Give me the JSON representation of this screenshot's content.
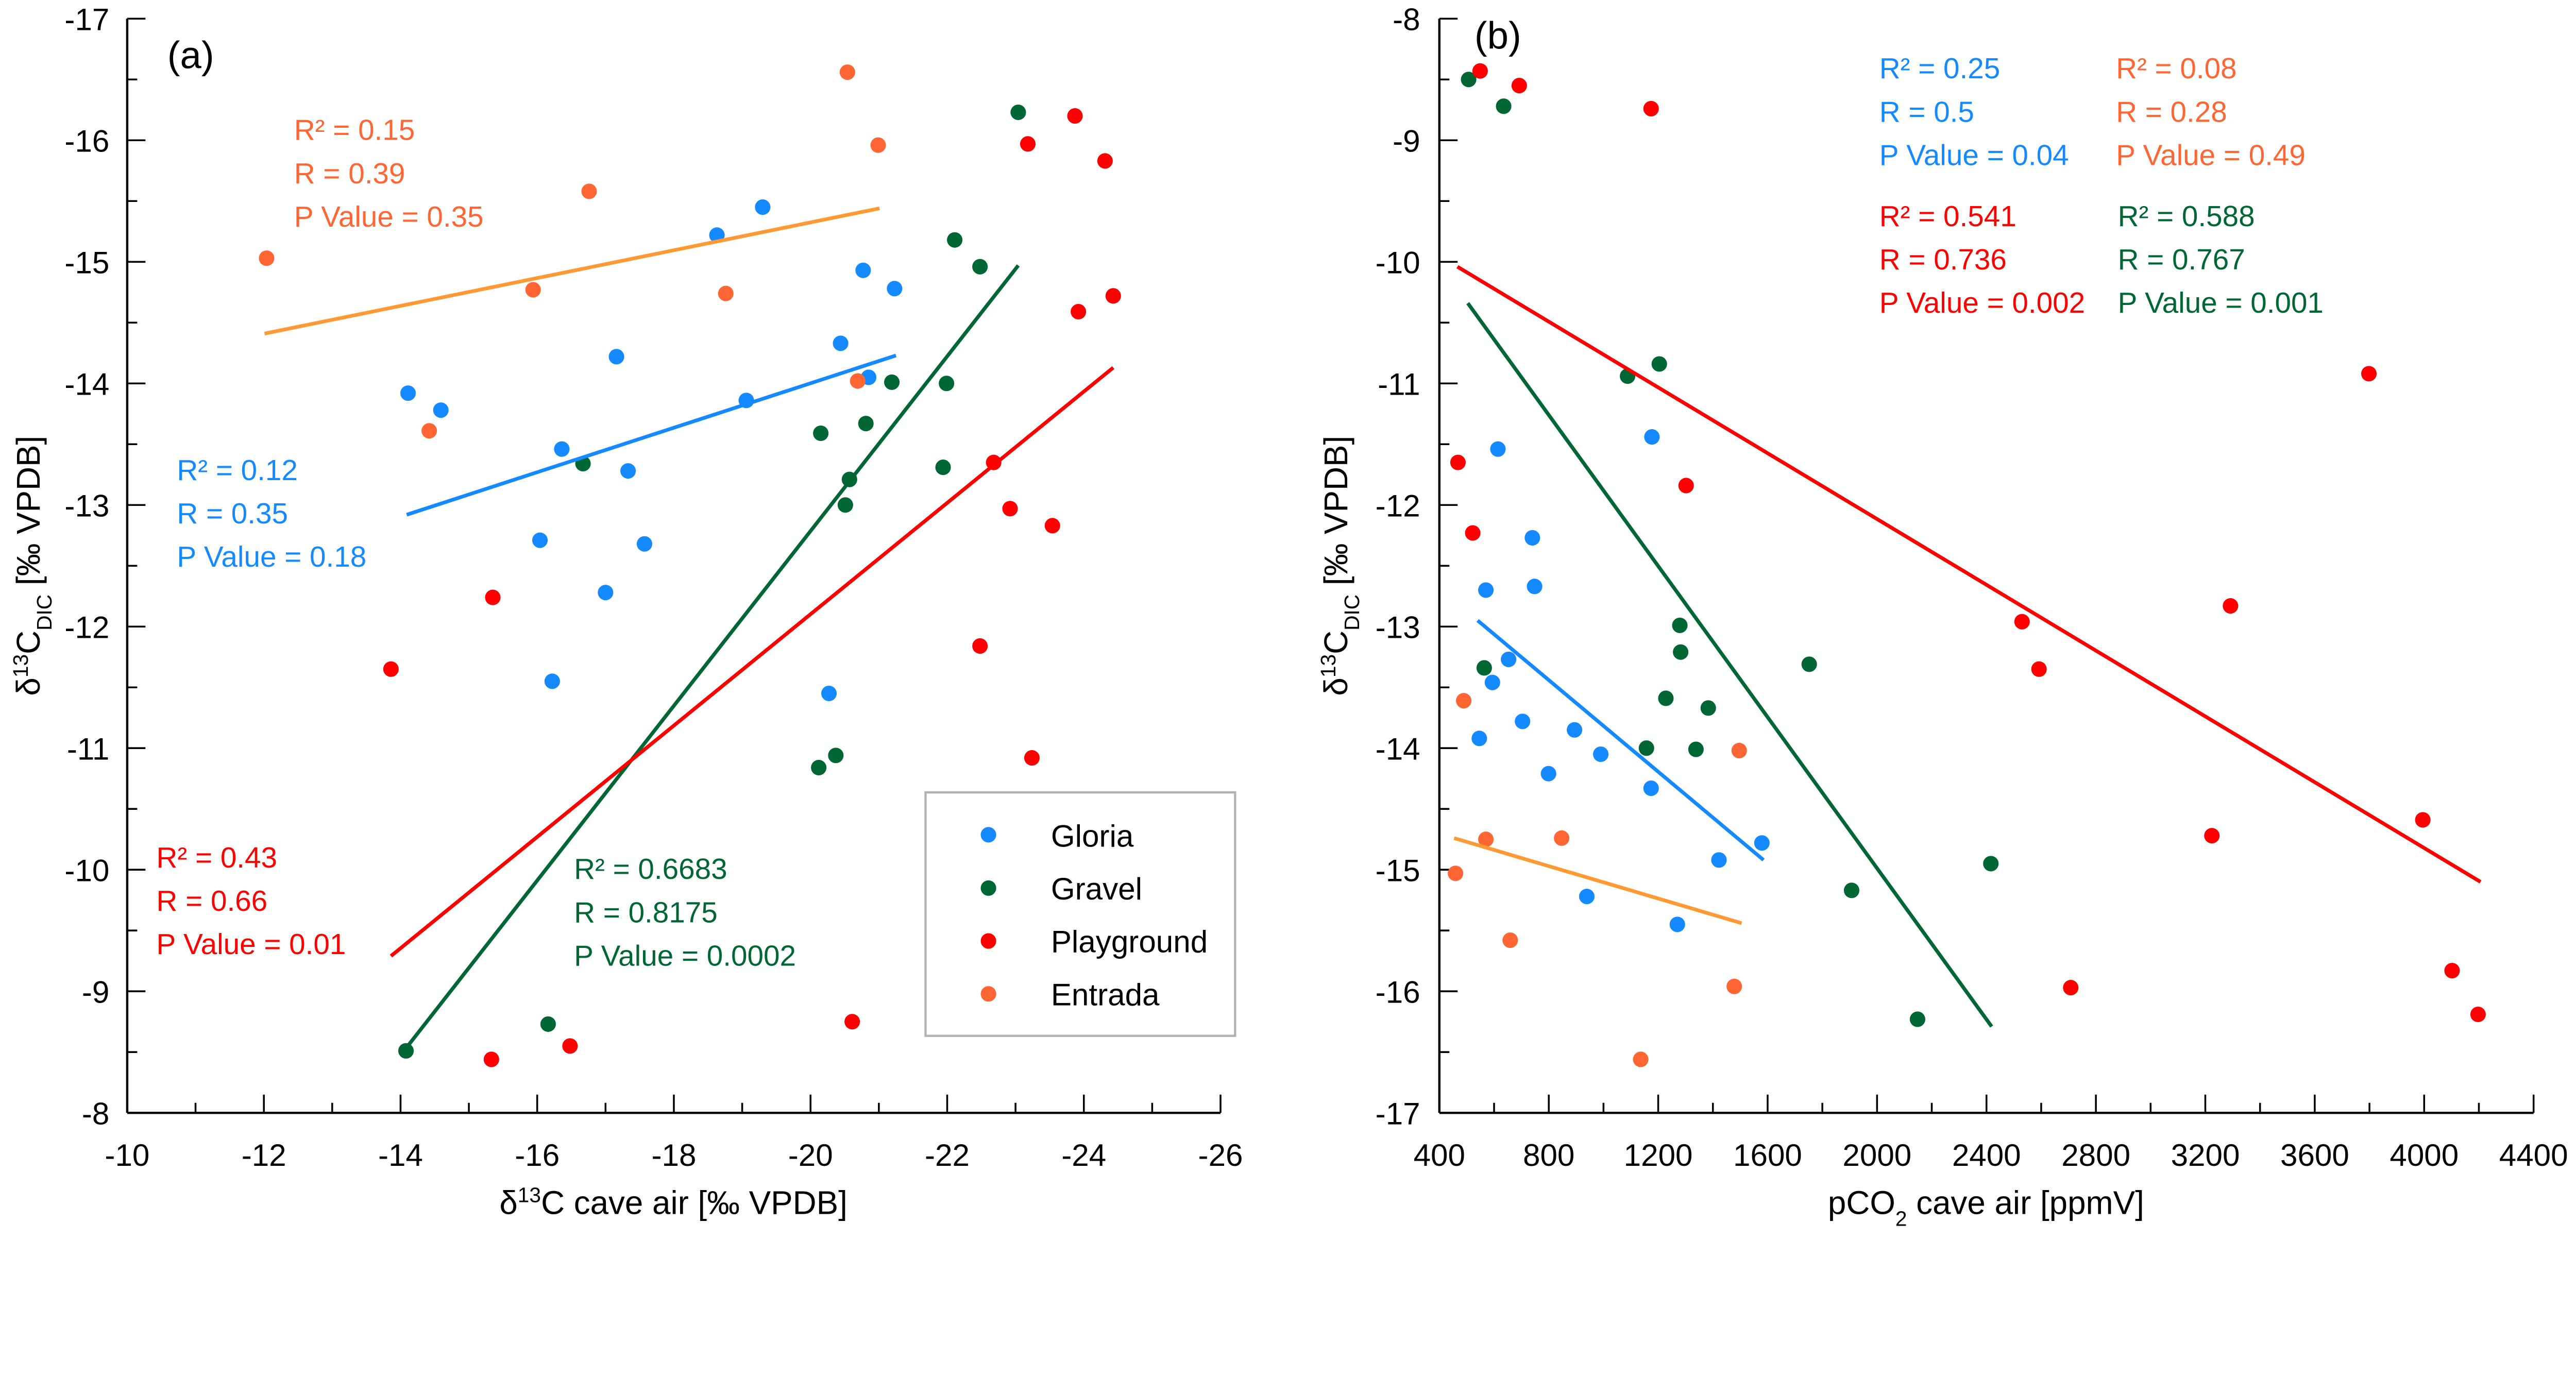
{
  "chart_data": [
    {
      "type": "scatter",
      "panel_label": "(a)",
      "xlabel": {
        "pre": "δ",
        "sup": "13",
        "main": "C cave air [‰ VPDB]",
        "sub": "",
        "post": ""
      },
      "ylabel": {
        "pre": "δ",
        "sup": "13",
        "main": "C",
        "sub": "DIC",
        "post": " [‰ VPDB]"
      },
      "xlim": [
        -10,
        -26
      ],
      "ylim": [
        -8,
        -17
      ],
      "xticks": [
        -10,
        -12,
        -14,
        -16,
        -18,
        -20,
        -22,
        -24,
        -26
      ],
      "xtick_labels": [
        "-10",
        "-12",
        "-14",
        "-16",
        "-18",
        "-20",
        "-22",
        "-24",
        "-26"
      ],
      "yticks": [
        -8,
        -9,
        -10,
        -11,
        -12,
        -13,
        -14,
        -15,
        -16,
        -17
      ],
      "ytick_labels": [
        "-8",
        "-9",
        "-10",
        "-11",
        "-12",
        "-13",
        "-14",
        "-15",
        "-16",
        "-17"
      ],
      "grid": false,
      "legend": {
        "position": "bottom-right",
        "entries": [
          "Gloria",
          "Gravel",
          "Playground",
          "Entrada"
        ]
      },
      "series": [
        {
          "name": "Gloria",
          "color": "#1589FF",
          "points": [
            [
              -14.11,
              -13.92
            ],
            [
              -14.59,
              -13.78
            ],
            [
              -16.36,
              -13.46
            ],
            [
              -17.16,
              -14.22
            ],
            [
              -17.33,
              -13.28
            ],
            [
              -16.04,
              -12.71
            ],
            [
              -17.57,
              -12.68
            ],
            [
              -17.0,
              -12.28
            ],
            [
              -16.22,
              -11.55
            ],
            [
              -18.63,
              -15.22
            ],
            [
              -19.3,
              -15.45
            ],
            [
              -19.06,
              -13.86
            ],
            [
              -20.44,
              -14.33
            ],
            [
              -20.77,
              -14.93
            ],
            [
              -21.23,
              -14.78
            ],
            [
              -20.85,
              -14.05
            ],
            [
              -20.27,
              -11.45
            ]
          ]
        },
        {
          "name": "Gravel",
          "color": "#006633",
          "points": [
            [
              -14.08,
              -8.51
            ],
            [
              -16.67,
              -13.34
            ],
            [
              -16.16,
              -8.73
            ],
            [
              -20.15,
              -13.59
            ],
            [
              -20.57,
              -13.21
            ],
            [
              -20.51,
              -13.0
            ],
            [
              -20.81,
              -13.67
            ],
            [
              -21.19,
              -14.01
            ],
            [
              -20.12,
              -10.84
            ],
            [
              -20.37,
              -10.94
            ],
            [
              -21.99,
              -14.0
            ],
            [
              -21.94,
              -13.31
            ],
            [
              -22.11,
              -15.18
            ],
            [
              -22.48,
              -14.96
            ],
            [
              -23.04,
              -16.23
            ]
          ]
        },
        {
          "name": "Playground",
          "color": "#FF0000",
          "points": [
            [
              -13.86,
              -11.65
            ],
            [
              -15.35,
              -12.24
            ],
            [
              -15.33,
              -8.44
            ],
            [
              -16.48,
              -8.55
            ],
            [
              -20.61,
              -8.75
            ],
            [
              -22.48,
              -11.84
            ],
            [
              -23.24,
              -10.92
            ],
            [
              -22.68,
              -13.35
            ],
            [
              -22.92,
              -12.97
            ],
            [
              -23.54,
              -12.83
            ],
            [
              -23.18,
              -15.97
            ],
            [
              -23.87,
              -16.2
            ],
            [
              -24.31,
              -15.83
            ],
            [
              -23.92,
              -14.59
            ],
            [
              -24.43,
              -14.72
            ]
          ]
        },
        {
          "name": "Entrada",
          "color": "#FF6633",
          "points": [
            [
              -12.04,
              -15.03
            ],
            [
              -14.42,
              -13.61
            ],
            [
              -15.94,
              -14.77
            ],
            [
              -16.76,
              -15.58
            ],
            [
              -18.76,
              -14.74
            ],
            [
              -20.54,
              -16.56
            ],
            [
              -20.99,
              -15.96
            ],
            [
              -20.69,
              -14.02
            ]
          ]
        }
      ],
      "trendlines": [
        {
          "series": "Entrada",
          "color": "#FF9933",
          "from": [
            -12.01,
            -14.41
          ],
          "to": [
            -21.01,
            -15.44
          ]
        },
        {
          "series": "Gloria",
          "color": "#1589FF",
          "from": [
            -14.09,
            -12.92
          ],
          "to": [
            -21.25,
            -14.23
          ]
        },
        {
          "series": "Gravel",
          "color": "#006633",
          "from": [
            -14.05,
            -8.51
          ],
          "to": [
            -23.04,
            -14.97
          ]
        },
        {
          "series": "Playground",
          "color": "#FF0000",
          "from": [
            -13.86,
            -9.29
          ],
          "to": [
            -24.43,
            -14.13
          ]
        }
      ],
      "annotations": [
        {
          "series": "Entrada",
          "color": "#FF6633",
          "lines": [
            "R² = 0.15",
            "R = 0.39",
            "P  Value = 0.35"
          ]
        },
        {
          "series": "Gloria",
          "color": "#1589FF",
          "lines": [
            "R² = 0.12",
            "R = 0.35",
            "P  Value = 0.18"
          ]
        },
        {
          "series": "Playground",
          "color": "#FF0000",
          "lines": [
            "R² = 0.43",
            "R = 0.66",
            "P  Value = 0.01"
          ]
        },
        {
          "series": "Gravel",
          "color": "#006633",
          "lines": [
            "R² = 0.6683",
            "R = 0.8175",
            "P  Value = 0.0002"
          ]
        }
      ]
    },
    {
      "type": "scatter",
      "panel_label": "(b)",
      "xlabel": {
        "pre": "pCO",
        "sup": "",
        "main": "",
        "sub": "2",
        "post": " cave air [ppmV]"
      },
      "ylabel": {
        "pre": "δ",
        "sup": "13",
        "main": "C",
        "sub": "DIC",
        "post": " [‰ VPDB]"
      },
      "xlim": [
        400,
        4400
      ],
      "ylim": [
        -17,
        -8
      ],
      "xticks": [
        400,
        800,
        1200,
        1600,
        2000,
        2400,
        2800,
        3200,
        3600,
        4000,
        4400
      ],
      "xtick_labels": [
        "400",
        "800",
        "1200",
        "1600",
        "2000",
        "2400",
        "2800",
        "3200",
        "3600",
        "4000",
        "4400"
      ],
      "yticks": [
        -17,
        -16,
        -15,
        -14,
        -13,
        -12,
        -11,
        -10,
        -9,
        -8
      ],
      "ytick_labels": [
        "-17",
        "-16",
        "-15",
        "-14",
        "-13",
        "-12",
        "-11",
        "-10",
        "-9",
        "-8"
      ],
      "grid": false,
      "series": [
        {
          "name": "Gloria",
          "color": "#1589FF",
          "points": [
            [
              614,
              -11.54
            ],
            [
              1177,
              -11.44
            ],
            [
              740,
              -12.27
            ],
            [
              748,
              -12.67
            ],
            [
              570,
              -12.7
            ],
            [
              653,
              -13.27
            ],
            [
              594,
              -13.46
            ],
            [
              704,
              -13.78
            ],
            [
              546,
              -13.92
            ],
            [
              894,
              -13.85
            ],
            [
              990,
              -14.05
            ],
            [
              799,
              -14.21
            ],
            [
              1174,
              -14.33
            ],
            [
              1422,
              -14.92
            ],
            [
              1579,
              -14.78
            ],
            [
              939,
              -15.22
            ],
            [
              1270,
              -15.45
            ]
          ]
        },
        {
          "name": "Gravel",
          "color": "#006633",
          "points": [
            [
              507,
              -8.5
            ],
            [
              635,
              -8.72
            ],
            [
              1088,
              -10.94
            ],
            [
              1204,
              -10.84
            ],
            [
              564,
              -13.34
            ],
            [
              1279,
              -12.99
            ],
            [
              1282,
              -13.21
            ],
            [
              1228,
              -13.59
            ],
            [
              1383,
              -13.67
            ],
            [
              1157,
              -14.0
            ],
            [
              1338,
              -14.01
            ],
            [
              1752,
              -13.31
            ],
            [
              1907,
              -15.17
            ],
            [
              2416,
              -14.95
            ],
            [
              2148,
              -16.23
            ]
          ]
        },
        {
          "name": "Playground",
          "color": "#FF0000",
          "points": [
            [
              549,
              -8.43
            ],
            [
              692,
              -8.55
            ],
            [
              1174,
              -8.74
            ],
            [
              468,
              -11.65
            ],
            [
              522,
              -12.23
            ],
            [
              1302,
              -11.84
            ],
            [
              2530,
              -12.96
            ],
            [
              2592,
              -13.35
            ],
            [
              2708,
              -15.97
            ],
            [
              3292,
              -12.83
            ],
            [
              3224,
              -14.72
            ],
            [
              3798,
              -10.92
            ],
            [
              3995,
              -14.59
            ],
            [
              4102,
              -15.83
            ],
            [
              4197,
              -16.19
            ]
          ]
        },
        {
          "name": "Entrada",
          "color": "#FF6633",
          "points": [
            [
              489,
              -13.61
            ],
            [
              459,
              -15.03
            ],
            [
              570,
              -14.75
            ],
            [
              659,
              -15.58
            ],
            [
              847,
              -14.74
            ],
            [
              1496,
              -14.02
            ],
            [
              1478,
              -15.96
            ],
            [
              1136,
              -16.56
            ]
          ]
        }
      ],
      "trendlines": [
        {
          "series": "Playground",
          "color": "#FF0000",
          "from": [
            466,
            -10.04
          ],
          "to": [
            4206,
            -15.1
          ]
        },
        {
          "series": "Gravel",
          "color": "#006633",
          "from": [
            504,
            -10.34
          ],
          "to": [
            2419,
            -16.29
          ]
        },
        {
          "series": "Gloria",
          "color": "#1589FF",
          "from": [
            540,
            -12.95
          ],
          "to": [
            1585,
            -14.92
          ]
        },
        {
          "series": "Entrada",
          "color": "#FF9933",
          "from": [
            454,
            -14.74
          ],
          "to": [
            1505,
            -15.44
          ]
        }
      ],
      "annotations": [
        {
          "series": "Gloria",
          "color": "#1589FF",
          "lines": [
            "R² = 0.25",
            "R = 0.5",
            "P  Value = 0.04"
          ]
        },
        {
          "series": "Entrada",
          "color": "#FF6633",
          "lines": [
            "R² = 0.08",
            "R = 0.28",
            "P  Value = 0.49"
          ]
        },
        {
          "series": "Playground",
          "color": "#FF0000",
          "lines": [
            "R² = 0.541",
            "R = 0.736",
            "P  Value = 0.002"
          ]
        },
        {
          "series": "Gravel",
          "color": "#006633",
          "lines": [
            "R² = 0.588",
            "R = 0.767",
            "P  Value = 0.001"
          ]
        }
      ]
    }
  ]
}
